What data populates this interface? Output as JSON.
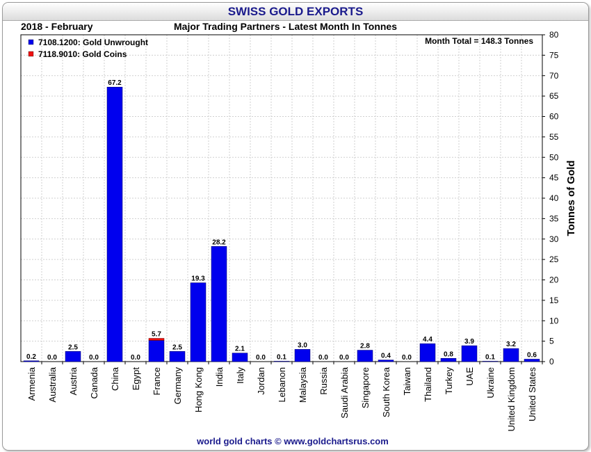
{
  "header": {
    "title": "SWISS GOLD EXPORTS",
    "period": "2018 - February",
    "subtitle": "Major Trading Partners - Latest Month In Tonnes"
  },
  "footer": {
    "credit": "world gold charts © www.goldchartsrus.com"
  },
  "colors": {
    "unwrought": "#0000ee",
    "coins": "#ee1111",
    "title": "#1a1a8c"
  },
  "chart_data": {
    "type": "bar",
    "stacked": true,
    "title": "SWISS GOLD EXPORTS",
    "subtitle": "Major Trading Partners - Latest Month In Tonnes",
    "ylabel": "Tonnes of Gold",
    "ylim": [
      0,
      80
    ],
    "ytick_step": 5,
    "grid": true,
    "legend_position": "top-left",
    "annotation": "Month Total = 148.3 Tonnes",
    "categories": [
      "Armenia",
      "Australia",
      "Austria",
      "Canada",
      "China",
      "Egypt",
      "France",
      "Germany",
      "Hong Kong",
      "India",
      "Italy",
      "Jordan",
      "Lebanon",
      "Malaysia",
      "Russia",
      "Saudi Arabia",
      "Singapore",
      "South Korea",
      "Taiwan",
      "Thailand",
      "Turkey",
      "UAE",
      "Ukraine",
      "United Kingdom",
      "United States"
    ],
    "totals_labels": [
      "0.2",
      "0.0",
      "2.5",
      "0.0",
      "67.2",
      "0.0",
      "5.7",
      "2.5",
      "19.3",
      "28.2",
      "2.1",
      "0.0",
      "0.1",
      "3.0",
      "0.0",
      "0.0",
      "2.8",
      "0.4",
      "0.0",
      "4.4",
      "0.8",
      "3.9",
      "0.1",
      "3.2",
      "0.6"
    ],
    "series": [
      {
        "name": "7108.1200: Gold Unwrought",
        "values": [
          0.2,
          0.0,
          2.5,
          0.0,
          67.2,
          0.0,
          5.2,
          2.5,
          19.3,
          28.2,
          2.1,
          0.0,
          0.1,
          3.0,
          0.0,
          0.0,
          2.8,
          0.4,
          0.0,
          4.4,
          0.8,
          3.9,
          0.1,
          3.2,
          0.6
        ]
      },
      {
        "name": "7118.9010: Gold Coins",
        "values": [
          0,
          0,
          0,
          0,
          0,
          0,
          0.5,
          0,
          0,
          0,
          0,
          0,
          0,
          0,
          0,
          0,
          0,
          0,
          0,
          0,
          0,
          0,
          0,
          0,
          0
        ]
      }
    ]
  }
}
